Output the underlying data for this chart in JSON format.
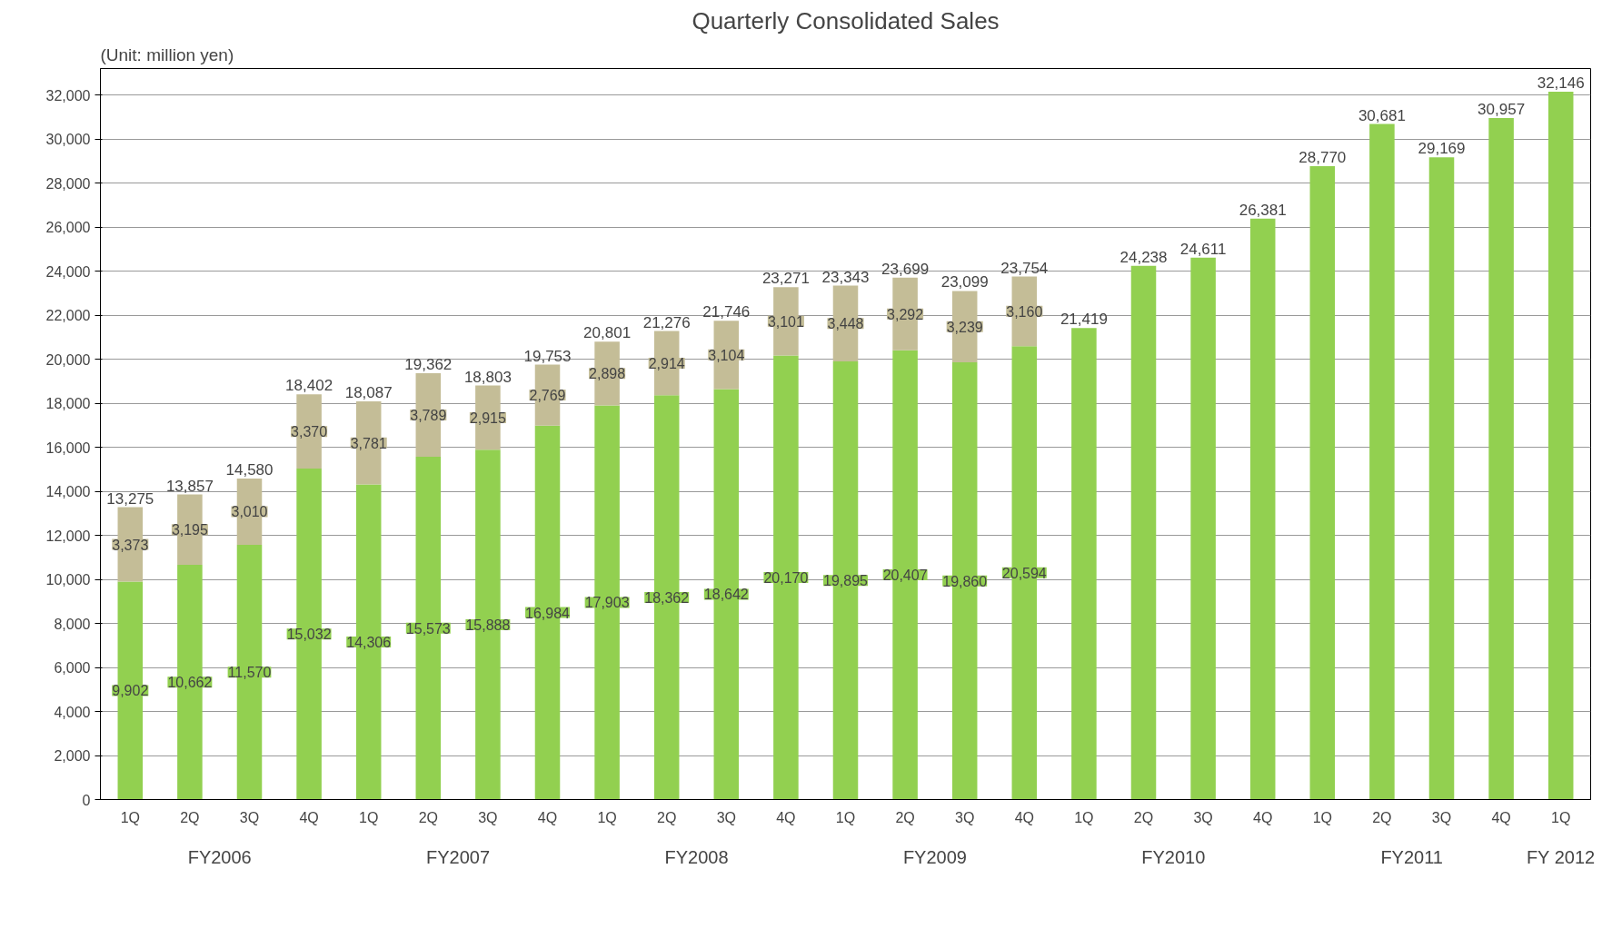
{
  "chart_data": {
    "type": "bar",
    "title": "Quarterly Consolidated Sales",
    "stacked": true,
    "categories": [
      "1Q",
      "2Q",
      "3Q",
      "4Q",
      "1Q",
      "2Q",
      "3Q",
      "4Q",
      "1Q",
      "2Q",
      "3Q",
      "4Q",
      "1Q",
      "2Q",
      "3Q",
      "4Q",
      "1Q",
      "2Q",
      "3Q",
      "4Q",
      "1Q",
      "2Q",
      "3Q",
      "4Q",
      "1Q"
    ],
    "series": [
      {
        "color": "#92d050",
        "values": [
          9902,
          10662,
          11570,
          15032,
          14306,
          15573,
          15888,
          16984,
          17903,
          18362,
          18642,
          20170,
          19895,
          20407,
          19860,
          20594,
          21419,
          24238,
          24611,
          26381,
          28770,
          30681,
          29169,
          30957,
          32146
        ],
        "value_labels": [
          "9,902",
          "10,662",
          "11,570",
          "15,032",
          "14,306",
          "15,573",
          "15,888",
          "16,984",
          "17,903",
          "18,362",
          "18,642",
          "20,170",
          "19,895",
          "20,407",
          "19,860",
          "20,594",
          null,
          null,
          null,
          null,
          null,
          null,
          null,
          null,
          null
        ]
      },
      {
        "color": "#c4bd97",
        "values": [
          3373,
          3195,
          3010,
          3370,
          3781,
          3789,
          2915,
          2769,
          2898,
          2914,
          3104,
          3101,
          3448,
          3292,
          3239,
          3160,
          null,
          null,
          null,
          null,
          null,
          null,
          null,
          null,
          null
        ],
        "value_labels": [
          "3,373",
          "3,195",
          "3,010",
          "3,370",
          "3,781",
          "3,789",
          "2,915",
          "2,769",
          "2,898",
          "2,914",
          "3,104",
          "3,101",
          "3,448",
          "3,292",
          "3,239",
          "3,160",
          null,
          null,
          null,
          null,
          null,
          null,
          null,
          null,
          null
        ]
      }
    ],
    "totals": [
      "13,275",
      "13,857",
      "14,580",
      "18,402",
      "18,087",
      "19,362",
      "18,803",
      "19,753",
      "20,801",
      "21,276",
      "21,746",
      "23,271",
      "23,343",
      "23,699",
      "23,099",
      "23,754",
      "21,419",
      "24,238",
      "24,611",
      "26,381",
      "28,770",
      "30,681",
      "29,169",
      "30,957",
      "32,146"
    ],
    "ylim": [
      0,
      33200
    ],
    "yticks": [
      {
        "value": 0,
        "label": "0"
      },
      {
        "value": 2000,
        "label": "2,000"
      },
      {
        "value": 4000,
        "label": "4,000"
      },
      {
        "value": 6000,
        "label": "6,000"
      },
      {
        "value": 8000,
        "label": "8,000"
      },
      {
        "value": 10000,
        "label": "10,000"
      },
      {
        "value": 12000,
        "label": "12,000"
      },
      {
        "value": 14000,
        "label": "14,000"
      },
      {
        "value": 16000,
        "label": "16,000"
      },
      {
        "value": 18000,
        "label": "18,000"
      },
      {
        "value": 20000,
        "label": "20,000"
      },
      {
        "value": 22000,
        "label": "22,000"
      },
      {
        "value": 24000,
        "label": "24,000"
      },
      {
        "value": 26000,
        "label": "26,000"
      },
      {
        "value": 28000,
        "label": "28,000"
      },
      {
        "value": 30000,
        "label": "30,000"
      },
      {
        "value": 32000,
        "label": "32,000"
      }
    ],
    "grid": "y",
    "annotations": [
      "(Unit: million yen)",
      "FY2006",
      "FY2007",
      "FY2008",
      "FY2009",
      "FY2010",
      "FY2011",
      "FY 2012"
    ]
  }
}
